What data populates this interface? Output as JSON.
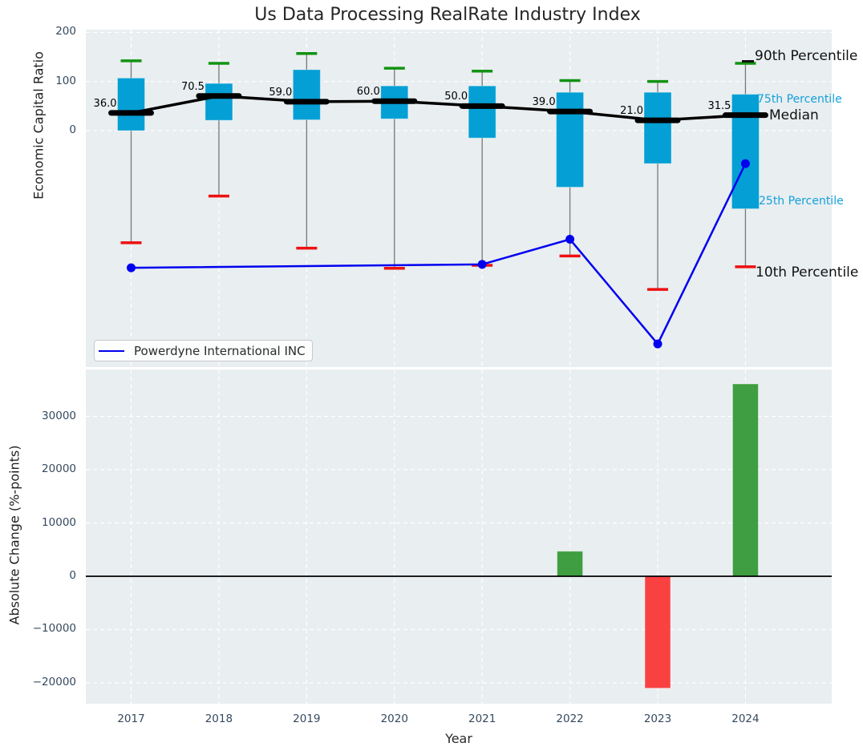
{
  "title": "Us Data Processing RealRate Industry Index",
  "xlabel": "Year",
  "xticks": [
    "2017",
    "2018",
    "2019",
    "2020",
    "2021",
    "2022",
    "2023",
    "2024"
  ],
  "top_panel": {
    "ylabel": "Economic Capital Ratio",
    "yticks": [
      "200",
      "100",
      "0"
    ],
    "ytick_values": [
      200,
      100,
      0
    ],
    "median_annotations": [
      "36.0",
      "70.5",
      "59.0",
      "60.0",
      "50.0",
      "39.0",
      "21.0",
      "31.5"
    ],
    "right_labels": {
      "p90": "90th Percentile",
      "p75": "75th Percentile",
      "median": "Median",
      "p25": "25th Percentile",
      "p10": "10th Percentile"
    },
    "legend": {
      "label": "Powerdyne International INC"
    }
  },
  "bottom_panel": {
    "ylabel": "Absolute Change (%-points)",
    "yticks": [
      "30000",
      "20000",
      "10000",
      "0",
      "−10000",
      "−20000"
    ],
    "ytick_values": [
      30000,
      20000,
      10000,
      0,
      -10000,
      -20000
    ]
  },
  "colors": {
    "box_fill": "#049fd4",
    "whisker": "#777777",
    "cap_high": "#119312",
    "cap_low": "#ee1111",
    "median_line": "#000000",
    "company_line": "#0000f0",
    "bar_positive": "#3e9e41",
    "bar_negative": "#fa4141",
    "panel_bg": "#e9eef0",
    "grid": "#ffffff",
    "tick_text": "#35495e",
    "cyan_label": "#14a0dc",
    "zero_line": "#000000"
  },
  "chart_data": [
    {
      "type": "boxplot-percentile-line",
      "title": "Us Data Processing RealRate Industry Index",
      "ylabel": "Economic Capital Ratio",
      "x": [
        2017,
        2018,
        2019,
        2020,
        2021,
        2022,
        2023,
        2024
      ],
      "ylim": [
        -481,
        205
      ],
      "yticks_shown": [
        0,
        100,
        200
      ],
      "grid": true,
      "legend_position": "lower left",
      "series": [
        {
          "name": "90th Percentile",
          "values": [
            142,
            137,
            157,
            127,
            121,
            102,
            100,
            137
          ]
        },
        {
          "name": "75th Percentile",
          "values": [
            107,
            96,
            124,
            91,
            91,
            78,
            78,
            74
          ]
        },
        {
          "name": "Median",
          "values": [
            36.0,
            70.5,
            59.0,
            60.0,
            50.0,
            39.0,
            21.0,
            31.5
          ]
        },
        {
          "name": "25th Percentile",
          "values": [
            0,
            21,
            22,
            24,
            -15,
            -115,
            -67,
            -159
          ]
        },
        {
          "name": "10th Percentile",
          "values": [
            -228,
            -133,
            -239,
            -280,
            -274,
            -255,
            -323,
            -277
          ]
        },
        {
          "name": "Powerdyne International INC",
          "values": [
            -279,
            null,
            null,
            null,
            -272,
            -221,
            -434,
            -67
          ]
        }
      ]
    },
    {
      "type": "bar",
      "ylabel": "Absolute Change (%-points)",
      "xlabel": "Year",
      "categories": [
        2017,
        2018,
        2019,
        2020,
        2021,
        2022,
        2023,
        2024
      ],
      "values": [
        null,
        null,
        null,
        null,
        null,
        4700,
        -21000,
        36100
      ],
      "ylim": [
        -23900,
        39000
      ],
      "grid": true,
      "zero_line": true
    }
  ]
}
